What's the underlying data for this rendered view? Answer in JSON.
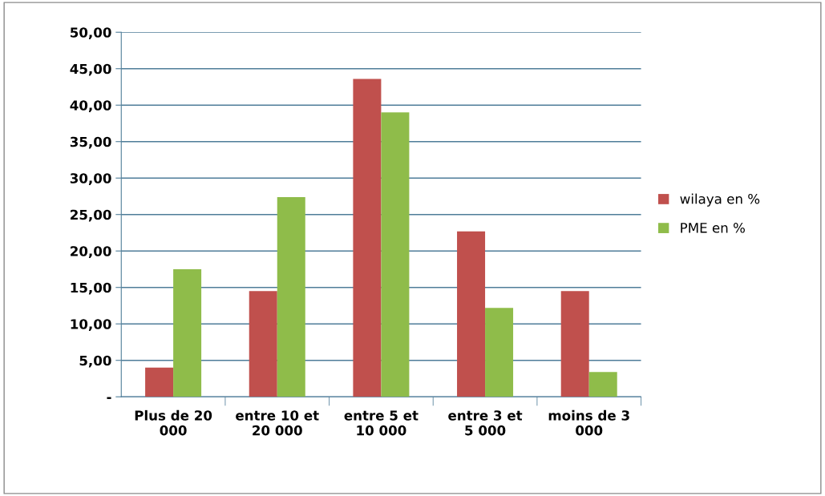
{
  "chart_data": {
    "type": "bar",
    "categories": [
      "Plus de 20\n000",
      "entre 10 et\n20 000",
      "entre 5 et\n10 000",
      "entre 3 et\n5 000",
      "moins de 3\n000"
    ],
    "series": [
      {
        "name": "wilaya en %",
        "color": "#c0504d",
        "values": [
          4.0,
          14.5,
          43.6,
          22.7,
          14.5
        ]
      },
      {
        "name": "PME en %",
        "color": "#8fbc4a",
        "values": [
          17.5,
          27.4,
          39.0,
          12.2,
          3.4
        ]
      }
    ],
    "ylim": [
      0,
      50
    ],
    "yticks": [
      {
        "value": 0,
        "label": "-"
      },
      {
        "value": 5,
        "label": "5,00"
      },
      {
        "value": 10,
        "label": "10,00"
      },
      {
        "value": 15,
        "label": "15,00"
      },
      {
        "value": 20,
        "label": "20,00"
      },
      {
        "value": 25,
        "label": "25,00"
      },
      {
        "value": 30,
        "label": "30,00"
      },
      {
        "value": 35,
        "label": "35,00"
      },
      {
        "value": 40,
        "label": "40,00"
      },
      {
        "value": 45,
        "label": "45,00"
      },
      {
        "value": 50,
        "label": "50,00"
      }
    ],
    "grid": "y",
    "legend": "right"
  }
}
